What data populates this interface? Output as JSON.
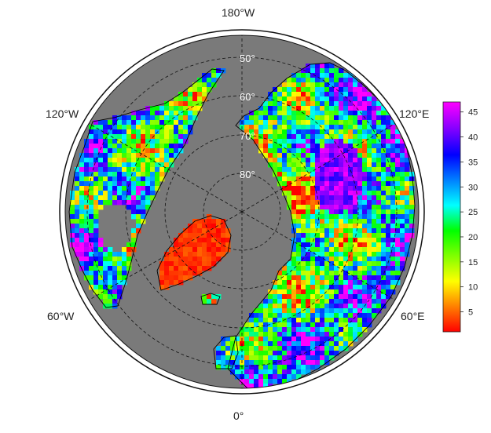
{
  "map": {
    "projection": "north polar stereographic",
    "ocean_color": "#7a7a7a",
    "land_outline_color": "#000000",
    "longitude_labels": {
      "top": "180°W",
      "upper_left": "120°W",
      "upper_right": "120°E",
      "lower_left": "60°W",
      "lower_right": "60°E",
      "bottom": "0°"
    },
    "latitude_labels": [
      "50°",
      "60°",
      "70°",
      "80°"
    ],
    "graticule_style": "dashed"
  },
  "colorbar": {
    "ticks": [
      "45",
      "40",
      "35",
      "30",
      "25",
      "20",
      "15",
      "10",
      "5"
    ],
    "tick_values": [
      45,
      40,
      35,
      30,
      25,
      20,
      15,
      10,
      5
    ],
    "min": 1,
    "max": 47,
    "colors": [
      "#ff0000",
      "#ff8000",
      "#ffff00",
      "#80ff00",
      "#00ff00",
      "#00ffff",
      "#0080ff",
      "#0000ff",
      "#8000ff",
      "#ff00ff"
    ]
  }
}
